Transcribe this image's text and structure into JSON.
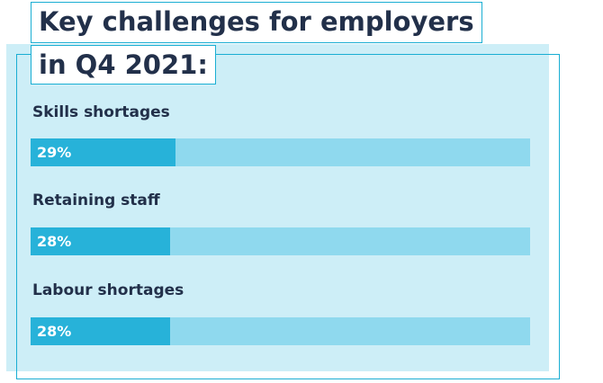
{
  "chart_data": {
    "type": "bar",
    "orientation": "horizontal",
    "title": "Key challenges for employers in Q4 2021:",
    "title_lines": [
      "Key challenges for employers",
      "in Q4 2021:"
    ],
    "categories": [
      "Skills shortages",
      "Retaining staff",
      "Labour shortages"
    ],
    "values": [
      29,
      28,
      28
    ],
    "value_labels": [
      "29%",
      "28%",
      "28%"
    ],
    "xlim": [
      0,
      100
    ],
    "grid": false,
    "colors": {
      "fill": "#27b2d9",
      "track": "#8fd9ee",
      "panel": "#cdeef7",
      "outline": "#1aaed3"
    }
  }
}
